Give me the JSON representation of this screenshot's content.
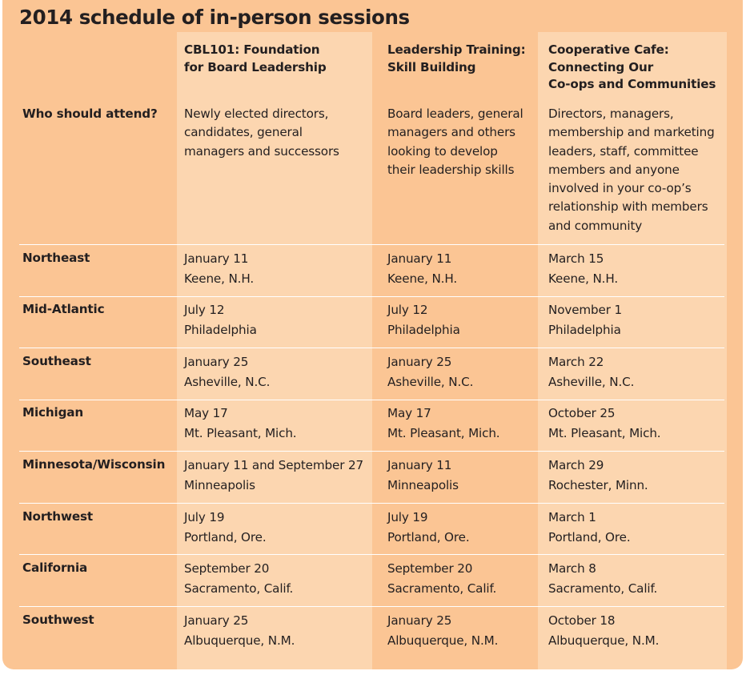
{
  "title": "2014 schedule of in-person sessions",
  "columns": [
    {
      "lines": [
        "CBL101:  Foundation",
        "for Board Leadership"
      ]
    },
    {
      "lines": [
        "Leadership Training:",
        "Skill Building"
      ]
    },
    {
      "lines": [
        "Cooperative Cafe:",
        "Connecting Our",
        "Co-ops and Communities"
      ]
    }
  ],
  "audience": {
    "label": "Who should attend?",
    "cells": [
      [
        "Newly elected directors,",
        "candidates, general",
        "managers and successors"
      ],
      [
        "Board leaders, general",
        "managers and others",
        "looking to develop",
        "their leadership skills"
      ],
      [
        "Directors, managers,",
        "membership and marketing",
        "leaders, staff, committee",
        "members and anyone",
        "involved in your co-op’s",
        "relationship with members",
        "and community"
      ]
    ]
  },
  "regions": [
    {
      "name": "Northeast",
      "sessions": [
        {
          "date": "January 11",
          "place": "Keene, N.H."
        },
        {
          "date": "January 11",
          "place": "Keene, N.H."
        },
        {
          "date": "March 15",
          "place": "Keene, N.H."
        }
      ]
    },
    {
      "name": "Mid-Atlantic",
      "sessions": [
        {
          "date": "July 12",
          "place": "Philadelphia"
        },
        {
          "date": "July 12",
          "place": "Philadelphia"
        },
        {
          "date": "November 1",
          "place": "Philadelphia"
        }
      ]
    },
    {
      "name": "Southeast",
      "sessions": [
        {
          "date": "January 25",
          "place": "Asheville, N.C."
        },
        {
          "date": "January 25",
          "place": "Asheville, N.C."
        },
        {
          "date": "March 22",
          "place": "Asheville, N.C."
        }
      ]
    },
    {
      "name": "Michigan",
      "sessions": [
        {
          "date": "May 17",
          "place": "Mt. Pleasant, Mich."
        },
        {
          "date": "May 17",
          "place": "Mt. Pleasant, Mich."
        },
        {
          "date": "October 25",
          "place": "Mt. Pleasant, Mich."
        }
      ]
    },
    {
      "name": "Minnesota/Wisconsin",
      "sessions": [
        {
          "date": "January 11 and September 27",
          "place": "Minneapolis"
        },
        {
          "date": "January 11",
          "place": "Minneapolis"
        },
        {
          "date": "March 29",
          "place": "Rochester, Minn."
        }
      ]
    },
    {
      "name": "Northwest",
      "sessions": [
        {
          "date": "July 19",
          "place": "Portland, Ore."
        },
        {
          "date": "July 19",
          "place": "Portland, Ore."
        },
        {
          "date": "March 1",
          "place": "Portland, Ore."
        }
      ]
    },
    {
      "name": "California",
      "sessions": [
        {
          "date": "September 20",
          "place": "Sacramento, Calif."
        },
        {
          "date": "September 20",
          "place": "Sacramento, Calif."
        },
        {
          "date": "March 8",
          "place": "Sacramento, Calif."
        }
      ]
    },
    {
      "name": "Southwest",
      "sessions": [
        {
          "date": "January 25",
          "place": "Albuquerque, N.M."
        },
        {
          "date": "January 25",
          "place": "Albuquerque, N.M."
        },
        {
          "date": "October 18",
          "place": "Albuquerque, N.M."
        }
      ]
    }
  ],
  "colors": {
    "panel": "#fbc594",
    "shaded_column": "#fcd6b0",
    "text": "#231f20",
    "rule": "#ffffff"
  }
}
